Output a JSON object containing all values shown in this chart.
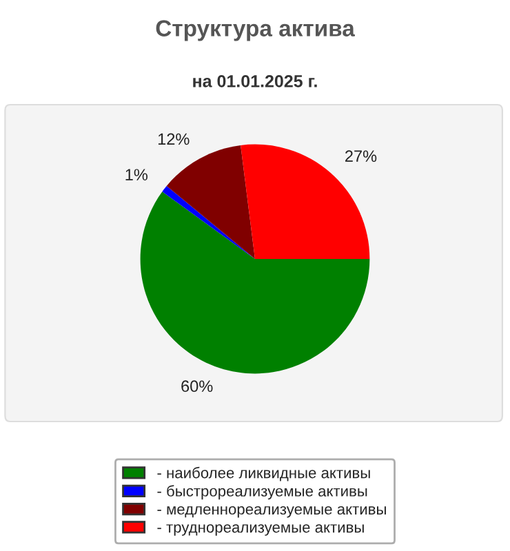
{
  "chart_data": {
    "type": "pie",
    "title": "Структура актива",
    "subtitle": "на 01.01.2025 г.",
    "categories": [
      "- наиболее ликвидные активы",
      "- быстрореализуемые активы",
      "- медленнореализуемые активы",
      "- труднореализуемые активы"
    ],
    "values": [
      60,
      1,
      12,
      27
    ],
    "colors": [
      "#008000",
      "#0000ff",
      "#800000",
      "#ff0000"
    ],
    "value_labels": [
      "60%",
      "1%",
      "12%",
      "27%"
    ],
    "legend": "bottom"
  }
}
